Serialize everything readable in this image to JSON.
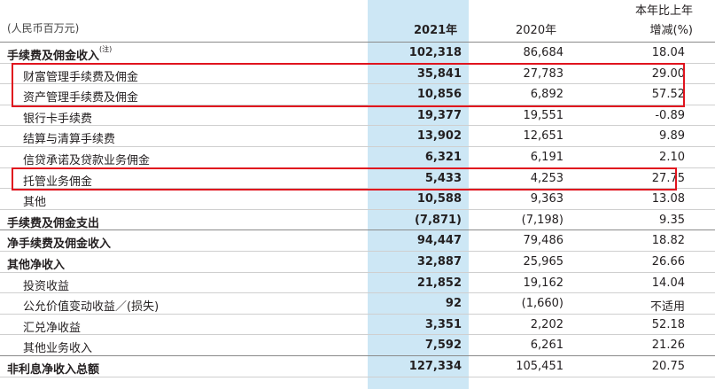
{
  "header": {
    "unit": "(人民币百万元)",
    "col_2021": "2021年",
    "col_2020": "2020年",
    "col_change_line1": "本年比上年",
    "col_change_line2": "增减(%)"
  },
  "rows": [
    {
      "label": "手续费及佣金收入",
      "note": "(注)",
      "v2021": "102,318",
      "v2020": "86,684",
      "pct": "18.04"
    },
    {
      "label": "财富管理手续费及佣金",
      "v2021": "35,841",
      "v2020": "27,783",
      "pct": "29.00"
    },
    {
      "label": "资产管理手续费及佣金",
      "v2021": "10,856",
      "v2020": "6,892",
      "pct": "57.52"
    },
    {
      "label": "银行卡手续费",
      "v2021": "19,377",
      "v2020": "19,551",
      "pct": "-0.89"
    },
    {
      "label": "结算与清算手续费",
      "v2021": "13,902",
      "v2020": "12,651",
      "pct": "9.89"
    },
    {
      "label": "信贷承诺及贷款业务佣金",
      "v2021": "6,321",
      "v2020": "6,191",
      "pct": "2.10"
    },
    {
      "label": "托管业务佣金",
      "v2021": "5,433",
      "v2020": "4,253",
      "pct": "27.75"
    },
    {
      "label": "其他",
      "v2021": "10,588",
      "v2020": "9,363",
      "pct": "13.08"
    },
    {
      "label": "手续费及佣金支出",
      "v2021": "(7,871)",
      "v2020": "(7,198)",
      "pct": "9.35"
    },
    {
      "label": "净手续费及佣金收入",
      "v2021": "94,447",
      "v2020": "79,486",
      "pct": "18.82"
    },
    {
      "label": "其他净收入",
      "v2021": "32,887",
      "v2020": "25,965",
      "pct": "26.66"
    },
    {
      "label": "投资收益",
      "v2021": "21,852",
      "v2020": "19,162",
      "pct": "14.04"
    },
    {
      "label": "公允价值变动收益／(损失)",
      "v2021": "92",
      "v2020": "(1,660)",
      "pct": "不适用"
    },
    {
      "label": "汇兑净收益",
      "v2021": "3,351",
      "v2020": "2,202",
      "pct": "52.18"
    },
    {
      "label": "其他业务收入",
      "v2021": "7,592",
      "v2020": "6,261",
      "pct": "21.26"
    },
    {
      "label": "非利息净收入总额",
      "v2021": "127,334",
      "v2020": "105,451",
      "pct": "20.75"
    }
  ],
  "colors": {
    "highlight": "#cde7f5",
    "box": "#e0141e"
  }
}
